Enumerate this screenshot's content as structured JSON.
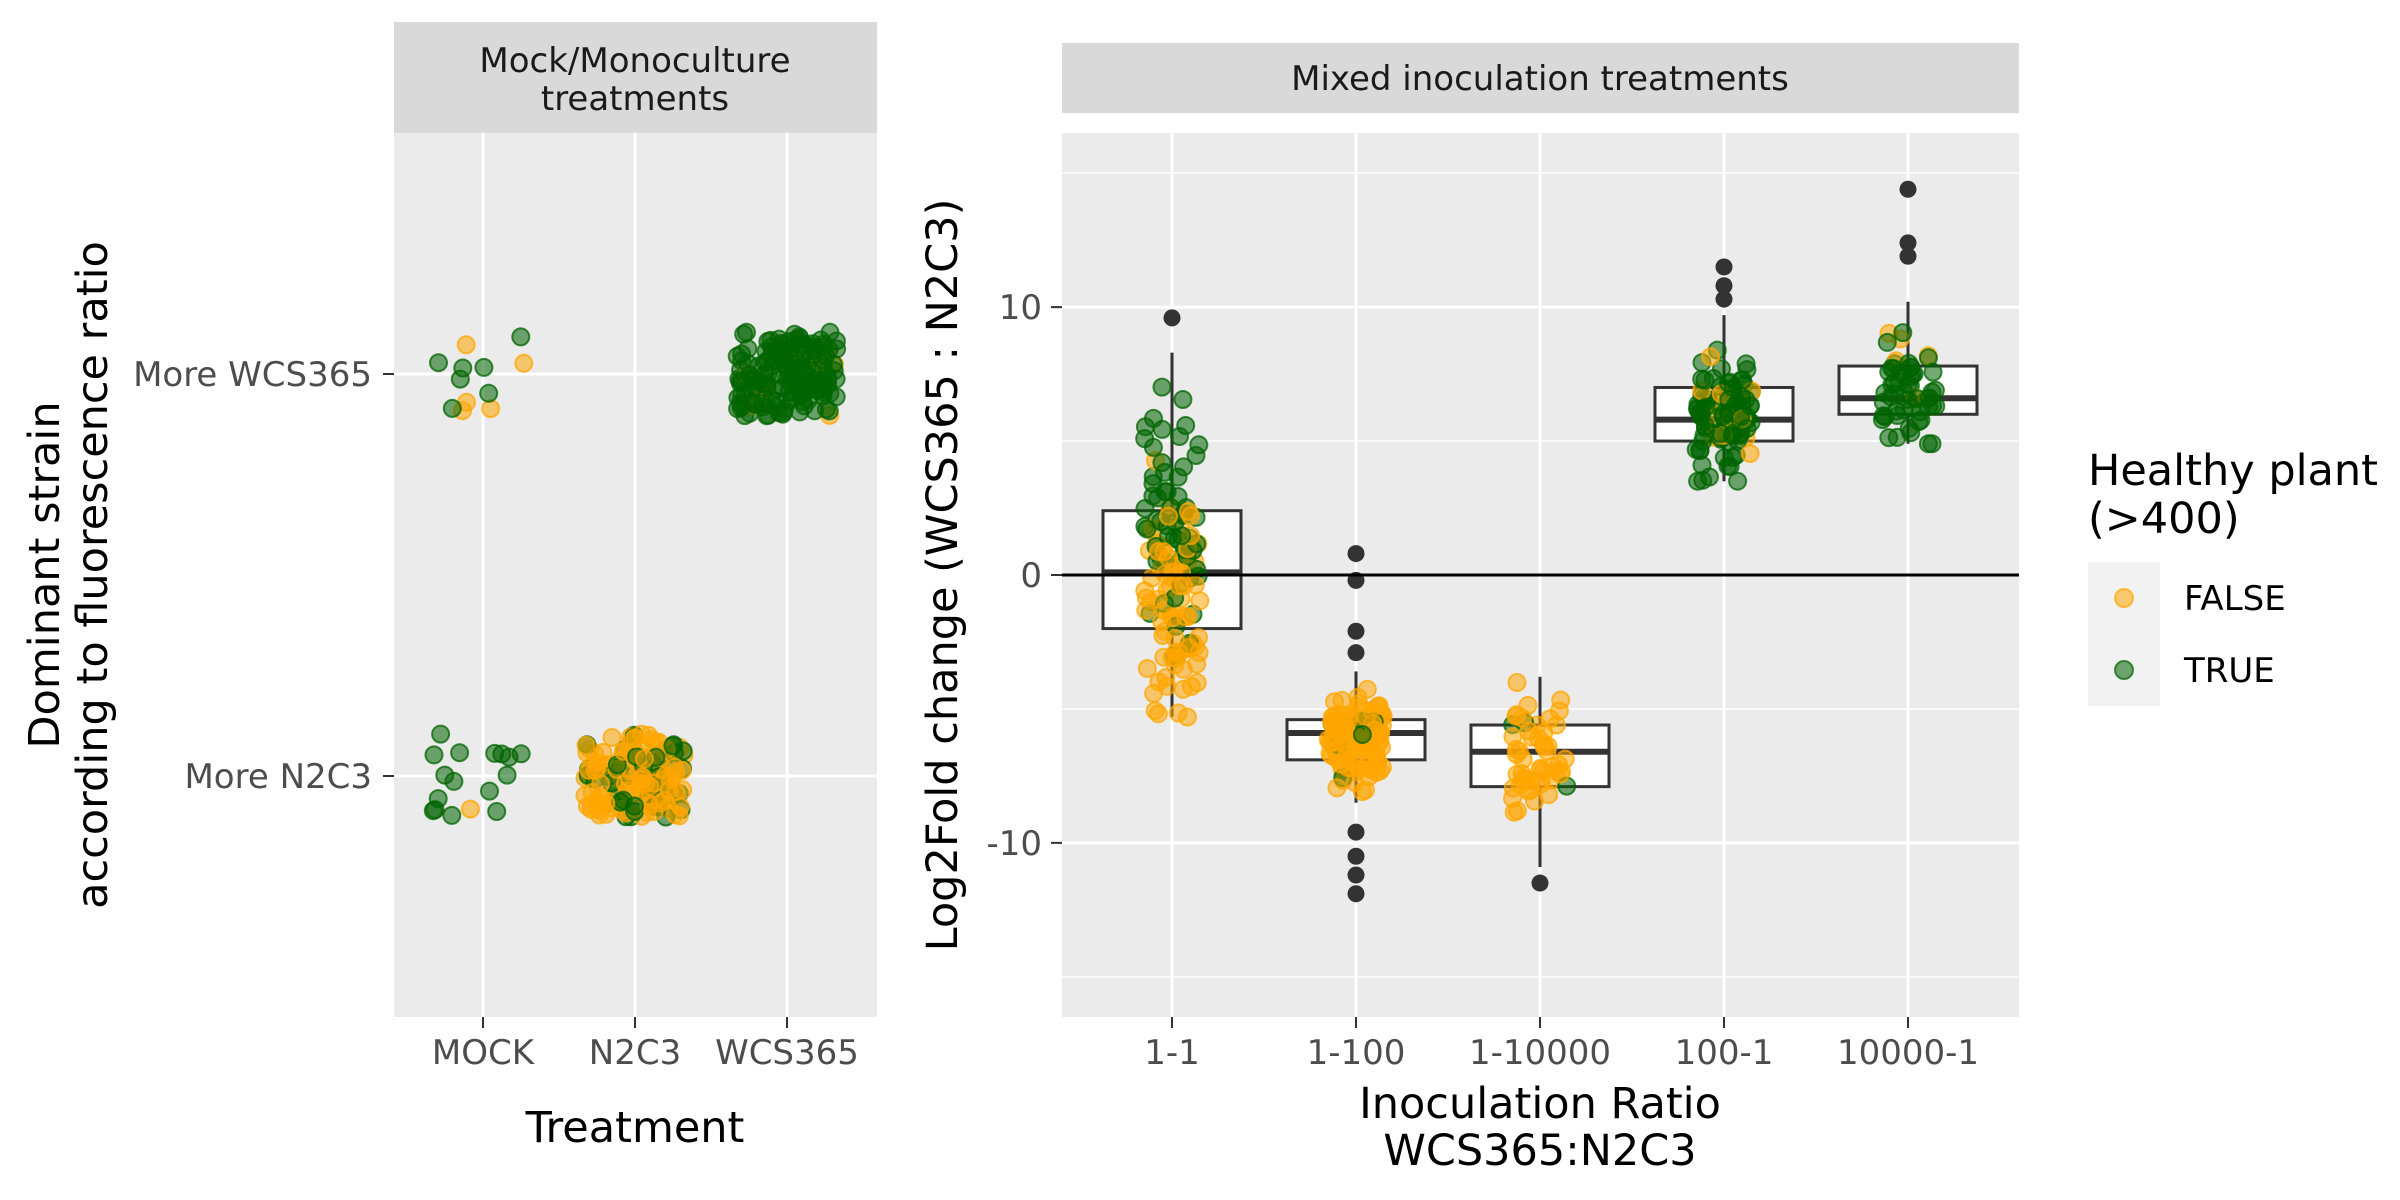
{
  "chart_data": [
    {
      "type": "scatter",
      "panel": "left",
      "strip_title": [
        "Mock/Monoculture",
        "treatments"
      ],
      "xlabel": "Treatment",
      "ylabel": [
        "Dominant strain",
        "according to fluorescence ratio"
      ],
      "categories": [
        "MOCK",
        "N2C3",
        "WCS365"
      ],
      "y_categories": [
        "More N2C3",
        "More WCS365"
      ],
      "grid": true,
      "groups": [
        {
          "treatment": "MOCK",
          "dominant": "More WCS365",
          "healthy_FALSE": 5,
          "healthy_TRUE": 7
        },
        {
          "treatment": "MOCK",
          "dominant": "More N2C3",
          "healthy_FALSE": 1,
          "healthy_TRUE": 16
        },
        {
          "treatment": "N2C3",
          "dominant": "More N2C3",
          "healthy_FALSE": 110,
          "healthy_TRUE": 40
        },
        {
          "treatment": "WCS365",
          "dominant": "More WCS365",
          "healthy_FALSE": 10,
          "healthy_TRUE": 150
        }
      ]
    },
    {
      "type": "box",
      "panel": "right",
      "strip_title": "Mixed inoculation treatments",
      "xlabel": [
        "Inoculation Ratio",
        "WCS365:N2C3"
      ],
      "ylabel": "Log2Fold change (WCS365 : N2C3)",
      "categories": [
        "1-1",
        "1-100",
        "1-10000",
        "100-1",
        "10000-1"
      ],
      "y_ticks": [
        -10,
        0,
        10
      ],
      "ylim": [
        -16.5,
        16.5
      ],
      "hline": 0,
      "grid": true,
      "boxes": [
        {
          "category": "1-1",
          "q1": -2.0,
          "median": 0.1,
          "q3": 2.4,
          "whisker_low": -5.3,
          "whisker_high": 8.3
        },
        {
          "category": "1-100",
          "q1": -6.9,
          "median": -5.9,
          "q3": -5.4,
          "whisker_low": -8.5,
          "whisker_high": -3.6
        },
        {
          "category": "1-10000",
          "q1": -7.9,
          "median": -6.6,
          "q3": -5.6,
          "whisker_low": -10.9,
          "whisker_high": -3.8
        },
        {
          "category": "100-1",
          "q1": 5.0,
          "median": 5.8,
          "q3": 7.0,
          "whisker_low": 3.5,
          "whisker_high": 9.7
        },
        {
          "category": "10000-1",
          "q1": 6.0,
          "median": 6.6,
          "q3": 7.8,
          "whisker_low": 4.9,
          "whisker_high": 10.2
        }
      ],
      "outliers": [
        {
          "category": "1-1",
          "values": [
            9.6
          ]
        },
        {
          "category": "1-100",
          "values": [
            0.8,
            -0.2,
            -2.1,
            -2.9,
            -9.6,
            -10.5,
            -11.2,
            -11.9
          ]
        },
        {
          "category": "1-10000",
          "values": [
            -11.5
          ]
        },
        {
          "category": "100-1",
          "values": [
            10.3,
            10.8,
            11.5
          ]
        },
        {
          "category": "10000-1",
          "values": [
            11.9,
            12.4,
            14.4
          ]
        }
      ],
      "points": [
        {
          "category": "1-1",
          "healthy_FALSE": 80,
          "healthy_TRUE": 60
        },
        {
          "category": "1-100",
          "healthy_FALSE": 120,
          "healthy_TRUE": 8
        },
        {
          "category": "1-10000",
          "healthy_FALSE": 50,
          "healthy_TRUE": 3
        },
        {
          "category": "100-1",
          "healthy_FALSE": 15,
          "healthy_TRUE": 90
        },
        {
          "category": "10000-1",
          "healthy_FALSE": 5,
          "healthy_TRUE": 50
        }
      ]
    }
  ],
  "legend": {
    "title": [
      "Healthy plant",
      "(>400)"
    ],
    "entries": [
      {
        "label": "FALSE",
        "color": "#ffa500"
      },
      {
        "label": "TRUE",
        "color": "#006400"
      }
    ],
    "placement": "right"
  },
  "colors": {
    "panel_bg": "#ebebeb",
    "strip_bg": "#d9d9d9",
    "grid": "#ffffff",
    "outlier": "#333333"
  }
}
